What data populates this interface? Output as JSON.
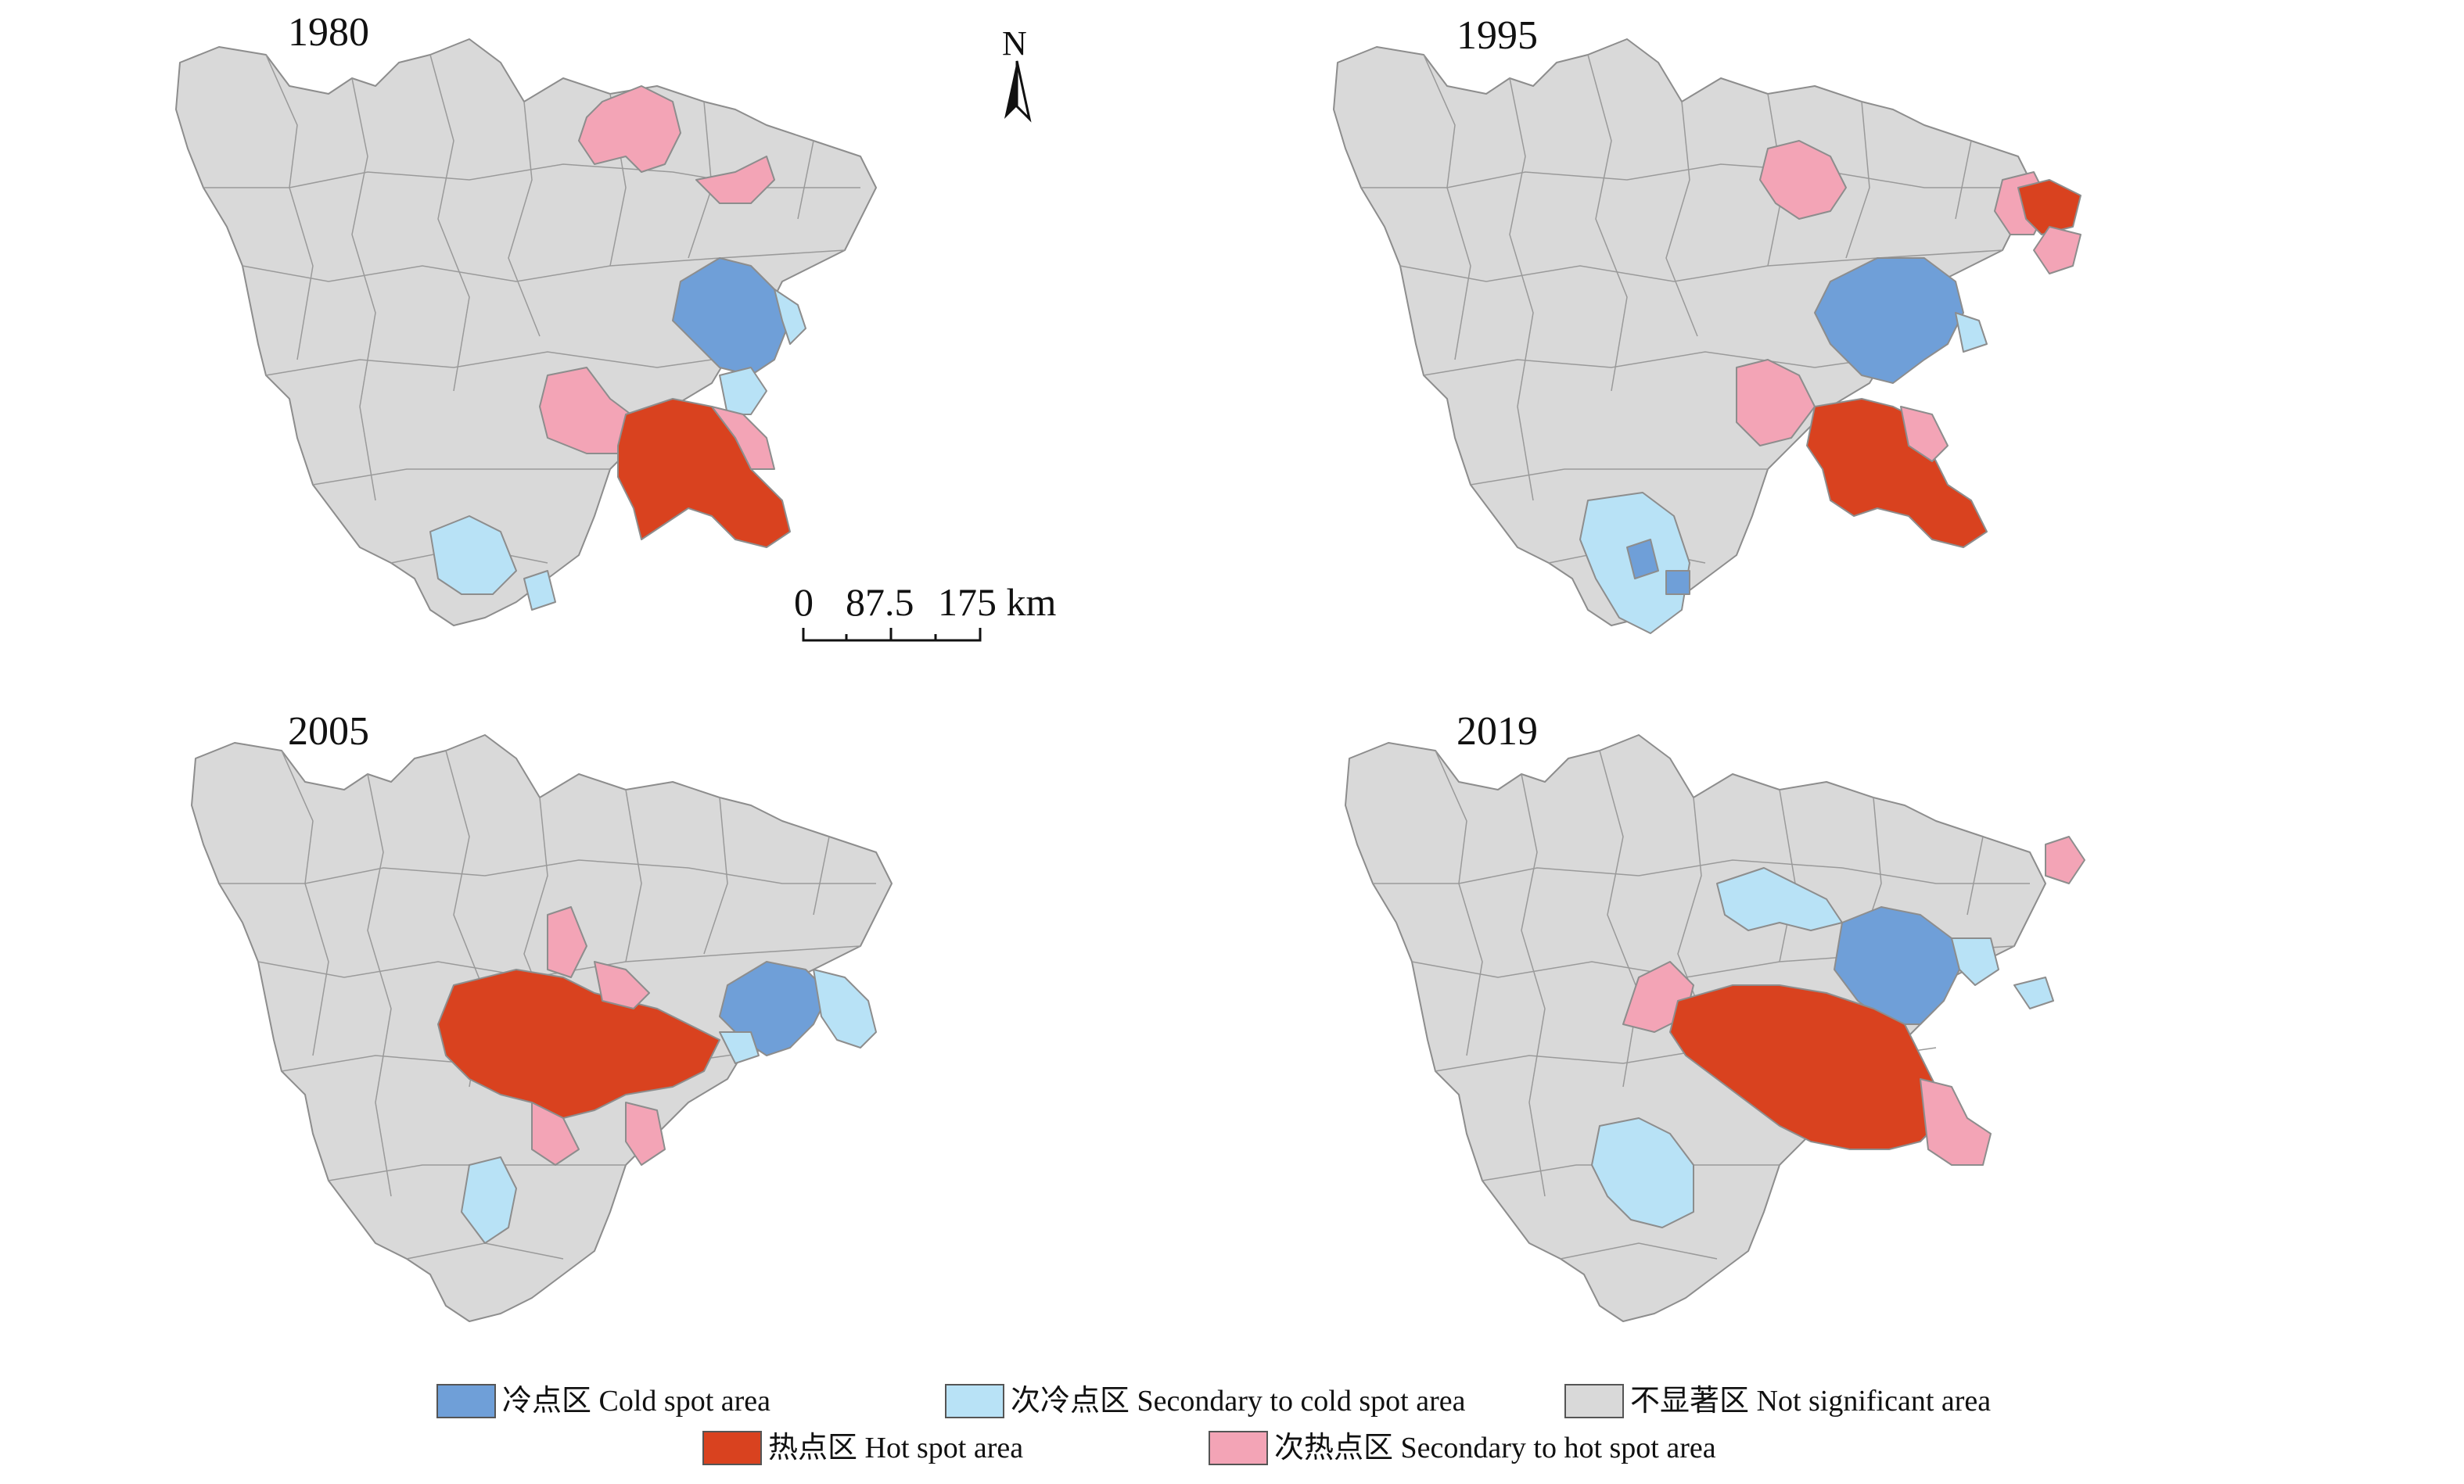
{
  "panels": [
    {
      "year": "1980"
    },
    {
      "year": "1995"
    },
    {
      "year": "2005"
    },
    {
      "year": "2019"
    }
  ],
  "north_arrow": {
    "label": "N"
  },
  "scale_bar": {
    "labels": [
      "0",
      "87.5",
      "175 km"
    ]
  },
  "colors": {
    "cold": "#6f9fd8",
    "secondary_cold": "#b8e2f6",
    "not_significant": "#d9d9d9",
    "hot": "#d9421f",
    "secondary_hot": "#f3a4b6"
  },
  "legend": [
    {
      "key": "cold",
      "label": "冷点区 Cold spot area"
    },
    {
      "key": "secondary_cold",
      "label": "次冷点区 Secondary to cold spot area"
    },
    {
      "key": "not_significant",
      "label": "不显著区 Not significant area"
    },
    {
      "key": "hot",
      "label": "热点区 Hot spot area"
    },
    {
      "key": "secondary_hot",
      "label": "次热点区 Secondary to hot spot area"
    }
  ]
}
